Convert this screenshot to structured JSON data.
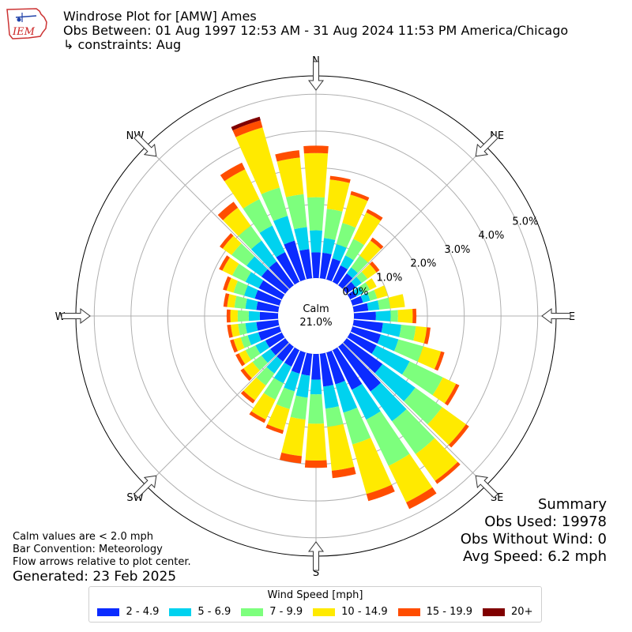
{
  "header": {
    "logo_text": "IEM",
    "title": "Windrose Plot for [AMW] Ames",
    "subtitle": "Obs Between: 01 Aug 1997 12:53 AM - 31 Aug 2024 11:53 PM America/Chicago",
    "constraints": "↳ constraints: Aug"
  },
  "chart_data": {
    "type": "windrose",
    "directions": [
      "N",
      "NE",
      "E",
      "SE",
      "S",
      "SW",
      "W",
      "NW"
    ],
    "radial_ticks": [
      "1.0%",
      "2.0%",
      "3.0%",
      "4.0%",
      "5.0%"
    ],
    "radial_max": 5.5,
    "calm_label": "Calm",
    "calm_value": "21.0%",
    "speed_bins": [
      "2 - 4.9",
      "5 - 6.9",
      "7 - 9.9",
      "10 - 14.9",
      "15 - 19.9",
      "20+"
    ],
    "colors": [
      "#0b2bff",
      "#00d2ef",
      "#7dff7d",
      "#ffea00",
      "#ff4d00",
      "#800000"
    ],
    "sector_angles_deg": [
      0,
      10,
      20,
      30,
      40,
      50,
      60,
      70,
      80,
      90,
      100,
      110,
      120,
      130,
      140,
      150,
      160,
      170,
      180,
      190,
      200,
      210,
      220,
      230,
      240,
      250,
      260,
      270,
      280,
      290,
      300,
      310,
      320,
      330,
      340,
      350
    ],
    "cumulative_percent": [
      [
        0.7,
        1.3,
        2.2,
        3.4,
        3.6,
        3.6
      ],
      [
        0.7,
        1.1,
        1.9,
        2.7,
        2.8,
        2.8
      ],
      [
        0.6,
        1.0,
        1.6,
        2.4,
        2.5,
        2.5
      ],
      [
        0.5,
        0.8,
        1.3,
        2.1,
        2.2,
        2.2
      ],
      [
        0.4,
        0.6,
        1.0,
        1.5,
        1.6,
        1.6
      ],
      [
        0.3,
        0.5,
        0.7,
        1.0,
        1.1,
        1.1
      ],
      [
        0.2,
        0.4,
        0.6,
        0.8,
        0.8,
        0.8
      ],
      [
        0.3,
        0.5,
        0.7,
        1.0,
        1.0,
        1.0
      ],
      [
        0.4,
        0.7,
        1.0,
        1.4,
        1.4,
        1.4
      ],
      [
        0.6,
        1.0,
        1.2,
        1.6,
        1.7,
        1.7
      ],
      [
        0.8,
        1.3,
        1.7,
        2.0,
        2.1,
        2.1
      ],
      [
        0.8,
        1.3,
        2.0,
        2.5,
        2.6,
        2.6
      ],
      [
        0.8,
        1.8,
        2.8,
        3.2,
        3.3,
        3.3
      ],
      [
        1.2,
        2.3,
        3.2,
        4.0,
        4.1,
        4.1
      ],
      [
        1.5,
        2.5,
        3.6,
        4.5,
        4.6,
        4.6
      ],
      [
        1.2,
        2.1,
        3.5,
        4.6,
        4.8,
        4.8
      ],
      [
        0.9,
        1.7,
        2.6,
        4.0,
        4.2,
        4.2
      ],
      [
        0.9,
        1.5,
        2.0,
        3.2,
        3.4,
        3.4
      ],
      [
        0.7,
        1.1,
        1.9,
        2.9,
        3.1,
        3.1
      ],
      [
        0.6,
        1.2,
        1.8,
        2.8,
        3.0,
        3.0
      ],
      [
        0.6,
        1.1,
        1.6,
        2.2,
        2.3,
        2.3
      ],
      [
        0.5,
        1.0,
        1.5,
        2.1,
        2.2,
        2.2
      ],
      [
        0.5,
        0.9,
        1.3,
        1.8,
        1.9,
        1.9
      ],
      [
        0.5,
        0.8,
        1.1,
        1.4,
        1.5,
        1.5
      ],
      [
        0.5,
        0.8,
        1.1,
        1.3,
        1.4,
        1.4
      ],
      [
        0.6,
        0.9,
        1.1,
        1.3,
        1.4,
        1.4
      ],
      [
        0.6,
        0.9,
        1.1,
        1.3,
        1.4,
        1.4
      ],
      [
        0.5,
        0.8,
        1.1,
        1.3,
        1.4,
        1.4
      ],
      [
        0.6,
        0.9,
        1.2,
        1.4,
        1.5,
        1.5
      ],
      [
        0.7,
        1.0,
        1.3,
        1.5,
        1.6,
        1.6
      ],
      [
        0.7,
        1.1,
        1.5,
        1.8,
        1.9,
        1.9
      ],
      [
        0.8,
        1.3,
        1.8,
        2.1,
        2.2,
        2.2
      ],
      [
        0.8,
        1.5,
        2.0,
        2.6,
        2.8,
        2.8
      ],
      [
        0.9,
        1.7,
        2.5,
        3.4,
        3.6,
        3.6
      ],
      [
        1.1,
        1.8,
        2.6,
        4.3,
        4.5,
        4.6
      ],
      [
        0.8,
        1.4,
        2.3,
        3.3,
        3.5,
        3.5
      ]
    ]
  },
  "summary": {
    "title": "Summary",
    "obs_used": "Obs Used: 19978",
    "obs_without_wind": "Obs Without Wind: 0",
    "avg_speed": "Avg Speed: 6.2 mph"
  },
  "notes": {
    "calm": "Calm values are < 2.0 mph",
    "bar_convention": "Bar Convention: Meteorology",
    "flow_arrows": "Flow arrows relative to plot center.",
    "generated": "Generated: 23 Feb 2025"
  },
  "legend": {
    "title": "Wind Speed [mph]",
    "items": [
      "2 - 4.9",
      "5 - 6.9",
      "7 - 9.9",
      "10 - 14.9",
      "15 - 19.9",
      "20+"
    ]
  }
}
